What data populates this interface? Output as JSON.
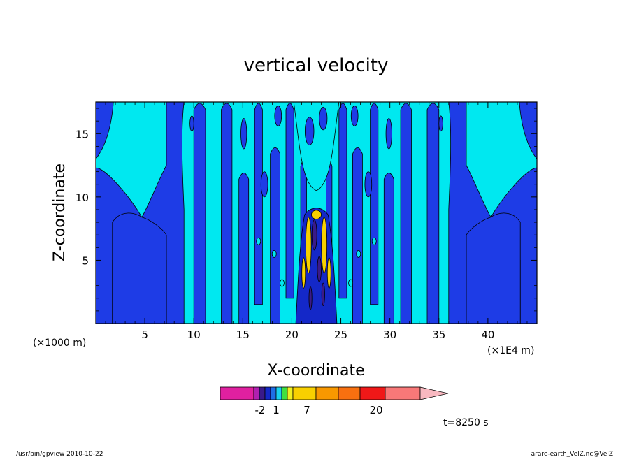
{
  "chart_data": {
    "type": "heatmap",
    "title": "vertical velocity",
    "xlabel": "X-coordinate",
    "ylabel": "Z-coordinate",
    "x_unit_label": "(×1000 m)",
    "x_secondary_unit_label": "(×1E4 m)",
    "x_ticks": [
      5,
      10,
      15,
      20,
      25,
      30,
      35,
      40
    ],
    "y_ticks": [
      5,
      10,
      15
    ],
    "xlim": [
      0,
      45
    ],
    "ylim": [
      0,
      17.5
    ],
    "time_label": "t=8250 s",
    "colorbar": {
      "colors": [
        "#e020a0",
        "#b020b0",
        "#3a1a8a",
        "#1428c8",
        "#1e6ee6",
        "#18d0f0",
        "#40e040",
        "#f0f020",
        "#f8d000",
        "#f89800",
        "#f87010",
        "#f01818",
        "#f87878",
        "#f8b8c0"
      ],
      "tick_labels": [
        "-2",
        "1",
        "7",
        "20"
      ]
    },
    "fields": {
      "negative_color": "#1e3ce6",
      "positive_color": "#00e8f0",
      "strong_positive_color": "#f8d000"
    }
  },
  "footer": {
    "left": "/usr/bin/gpview 2010-10-22",
    "right": "arare-earth_VelZ.nc@VelZ"
  }
}
